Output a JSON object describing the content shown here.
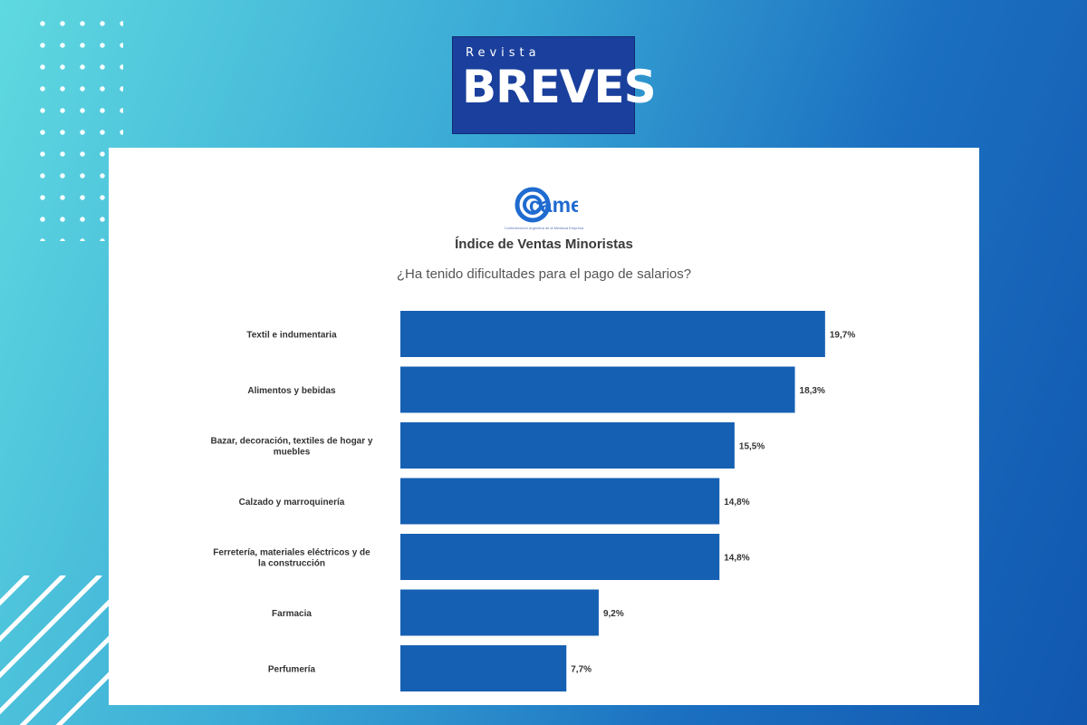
{
  "branding": {
    "logo_small": "Revista",
    "logo_big": "BREVES",
    "source_logo": "came",
    "source_logo_sub": "Confederación Argentina de la Mediana Empresa"
  },
  "colors": {
    "bar": "#1660b3",
    "logo_bg": "#1a3f9c",
    "came_blue": "#1f6bd0"
  },
  "chart_data": {
    "type": "bar",
    "orientation": "horizontal",
    "title": "Índice de Ventas Minoristas",
    "subtitle": "¿Ha tenido dificultades para el pago de salarios?",
    "categories": [
      "Textil e indumentaria",
      "Alimentos y bebidas",
      "Bazar, decoración, textiles de hogar y muebles",
      "Calzado y marroquinería",
      "Ferretería, materiales eléctricos y de la construcción",
      "Farmacia",
      "Perfumería"
    ],
    "values": [
      19.7,
      18.3,
      15.5,
      14.8,
      14.8,
      9.2,
      7.7
    ],
    "value_labels": [
      "19,7%",
      "18,3%",
      "15,5%",
      "14,8%",
      "14,8%",
      "9,2%",
      "7,7%"
    ],
    "xlim": [
      0,
      20
    ],
    "grid": false,
    "legend": "none"
  }
}
